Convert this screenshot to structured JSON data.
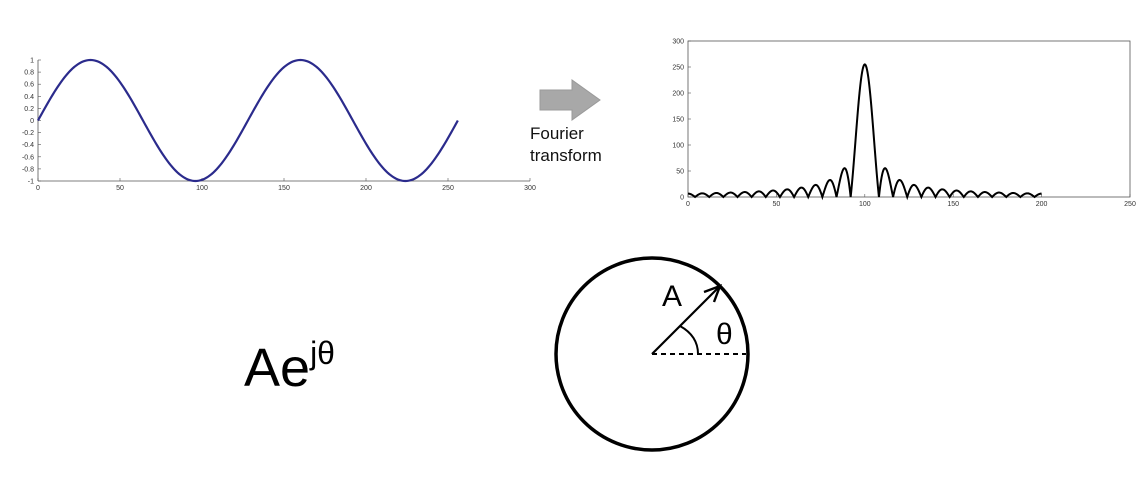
{
  "arrow": {
    "label_line1": "Fourier",
    "label_line2": "transform",
    "color": "#a8a8a8"
  },
  "formula": {
    "base": "Ae",
    "exponent": "jθ"
  },
  "phasor": {
    "magnitude_label": "A",
    "angle_label": "θ"
  },
  "chart_data": [
    {
      "type": "line",
      "description_series": "sine wave",
      "color": "#2b2b8c",
      "x": [
        0,
        16,
        32,
        48,
        64,
        80,
        96,
        112,
        128,
        144,
        160,
        176,
        192,
        208,
        224,
        240,
        256
      ],
      "y": [
        0,
        0.72,
        1.0,
        0.72,
        0.0,
        -0.72,
        -1.0,
        -0.72,
        0.0,
        0.72,
        1.0,
        0.72,
        0.0,
        -0.72,
        -1.0,
        -0.72,
        -0.05
      ],
      "period": 128,
      "x_samples": 256,
      "xlim": [
        0,
        300
      ],
      "ylim": [
        -1,
        1
      ],
      "xticks": [
        "0",
        "50",
        "100",
        "150",
        "200",
        "250",
        "300"
      ],
      "yticks": [
        "1",
        "0.8",
        "0.6",
        "0.4",
        "0.2",
        "0",
        "-0.2",
        "-0.4",
        "-0.6",
        "-0.8",
        "-1"
      ],
      "grid": false
    },
    {
      "type": "line",
      "color": "#000000",
      "peak_x": 100,
      "peak_y": 255,
      "x_range": [
        0,
        200
      ],
      "xlim": [
        0,
        250
      ],
      "ylim": [
        0,
        300
      ],
      "xticks": [
        "0",
        "50",
        "100",
        "150",
        "200",
        "250"
      ],
      "yticks": [
        "300",
        "250",
        "200",
        "150",
        "100",
        "50",
        "0"
      ],
      "sidelobe_peaks": [
        {
          "x": 88,
          "y": 55
        },
        {
          "x": 112,
          "y": 55
        },
        {
          "x": 80,
          "y": 33
        },
        {
          "x": 120,
          "y": 33
        },
        {
          "x": 72,
          "y": 24
        },
        {
          "x": 128,
          "y": 24
        },
        {
          "x": 64,
          "y": 19
        },
        {
          "x": 136,
          "y": 19
        },
        {
          "x": 56,
          "y": 15
        },
        {
          "x": 144,
          "y": 15
        },
        {
          "x": 48,
          "y": 13
        },
        {
          "x": 152,
          "y": 13
        },
        {
          "x": 40,
          "y": 11
        },
        {
          "x": 160,
          "y": 11
        },
        {
          "x": 32,
          "y": 10
        },
        {
          "x": 168,
          "y": 10
        },
        {
          "x": 24,
          "y": 9
        },
        {
          "x": 176,
          "y": 9
        },
        {
          "x": 16,
          "y": 8
        },
        {
          "x": 184,
          "y": 8
        },
        {
          "x": 8,
          "y": 7
        },
        {
          "x": 192,
          "y": 7
        }
      ],
      "grid": false
    }
  ]
}
